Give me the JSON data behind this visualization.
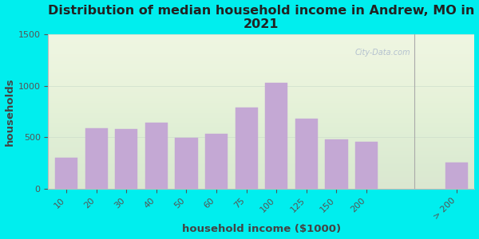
{
  "title": "Distribution of median household income in Andrew, MO in\n2021",
  "xlabel": "household income ($1000)",
  "ylabel": "households",
  "background_color": "#00EEEE",
  "plot_bg_color": "#eef5e0",
  "bar_color": "#C4A8D4",
  "bar_edge_color": "#C4A8D4",
  "categories": [
    "10",
    "20",
    "30",
    "40",
    "50",
    "60",
    "75",
    "100",
    "125",
    "150",
    "200",
    "> 200"
  ],
  "values": [
    300,
    590,
    575,
    640,
    490,
    530,
    790,
    1030,
    680,
    480,
    455,
    255
  ],
  "ylim": [
    0,
    1500
  ],
  "yticks": [
    0,
    500,
    1000,
    1500
  ],
  "watermark": "City-Data.com",
  "title_fontsize": 11.5,
  "axis_label_fontsize": 9.5,
  "tick_fontsize": 8,
  "tick_color": "#555555"
}
